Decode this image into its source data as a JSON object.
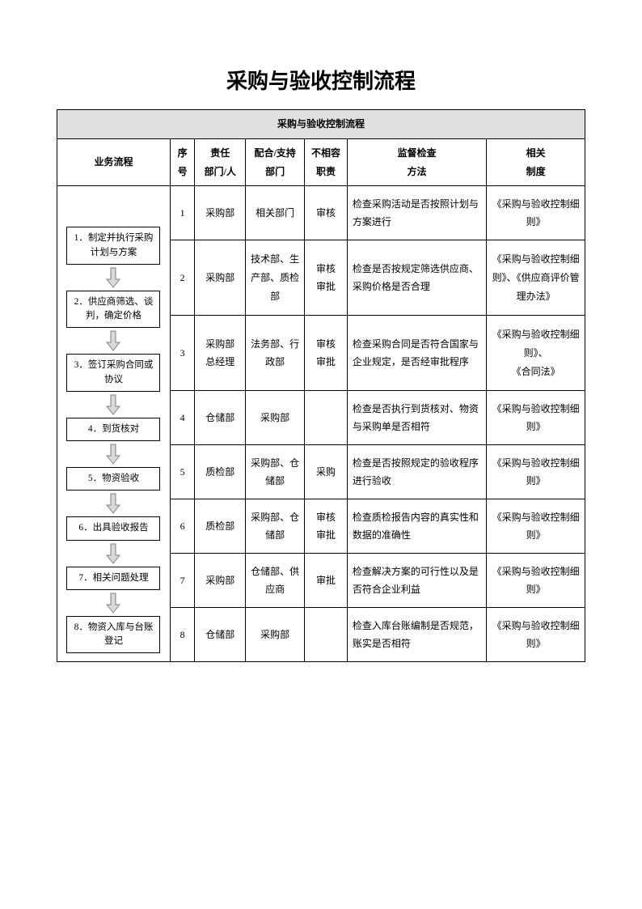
{
  "title": "采购与验收控制流程",
  "banner": "采购与验收控制流程",
  "headers": {
    "flow": "业务流程",
    "seq": "序号",
    "resp": "责任\n部门/人",
    "supp": "配合/支持\n部门",
    "incomp": "不相容\n职责",
    "check": "监督检查\n方法",
    "rule": "相关\n制度"
  },
  "flow_steps": [
    "1．制定并执行采购计划与方案",
    "2．供应商筛选、谈判，确定价格",
    "3．签订采购合同或协议",
    "4．到货核对",
    "5．物资验收",
    "6．出具验收报告",
    "7．相关问题处理",
    "8．物资入库与台账登记"
  ],
  "rows": [
    {
      "seq": "1",
      "resp": "采购部",
      "supp": "相关部门",
      "incomp": "审核",
      "check": "检查采购活动是否按照计划与方案进行",
      "rule": "《采购与验收控制细则》"
    },
    {
      "seq": "2",
      "resp": "采购部",
      "supp": "技术部、生产部、质检部",
      "incomp": "审核\n审批",
      "check": "检查是否按规定筛选供应商、采购价格是否合理",
      "rule": "《采购与验收控制细则》、《供应商评价管理办法》"
    },
    {
      "seq": "3",
      "resp": "采购部\n总经理",
      "supp": "法务部、行政部",
      "incomp": "审核\n审批",
      "check": "检查采购合同是否符合国家与企业规定，是否经审批程序",
      "rule": "《采购与验收控制细则》、\n《合同法》"
    },
    {
      "seq": "4",
      "resp": "仓储部",
      "supp": "采购部",
      "incomp": "",
      "check": "检查是否执行到货核对、物资与采购单是否相符",
      "rule": "《采购与验收控制细则》"
    },
    {
      "seq": "5",
      "resp": "质检部",
      "supp": "采购部、仓储部",
      "incomp": "采购",
      "check": "检查是否按照规定的验收程序进行验收",
      "rule": "《采购与验收控制细则》"
    },
    {
      "seq": "6",
      "resp": "质检部",
      "supp": "采购部、仓储部",
      "incomp": "审核\n审批",
      "check": "检查质检报告内容的真实性和数据的准确性",
      "rule": "《采购与验收控制细则》"
    },
    {
      "seq": "7",
      "resp": "采购部",
      "supp": "仓储部、供应商",
      "incomp": "审批",
      "check": "检查解决方案的可行性以及是否符合企业利益",
      "rule": "《采购与验收控制细则》"
    },
    {
      "seq": "8",
      "resp": "仓储部",
      "supp": "采购部",
      "incomp": "",
      "check": "检查入库台账编制是否规范，账实是否相符",
      "rule": "《采购与验收控制细则》"
    }
  ],
  "style": {
    "page_bg": "#ffffff",
    "banner_bg": "#e0e0e0",
    "border_color": "#000000",
    "arrow_fill": "#d9d9d9",
    "arrow_stroke": "#7f7f7f",
    "title_fontsize": 26,
    "body_fontsize": 12
  }
}
